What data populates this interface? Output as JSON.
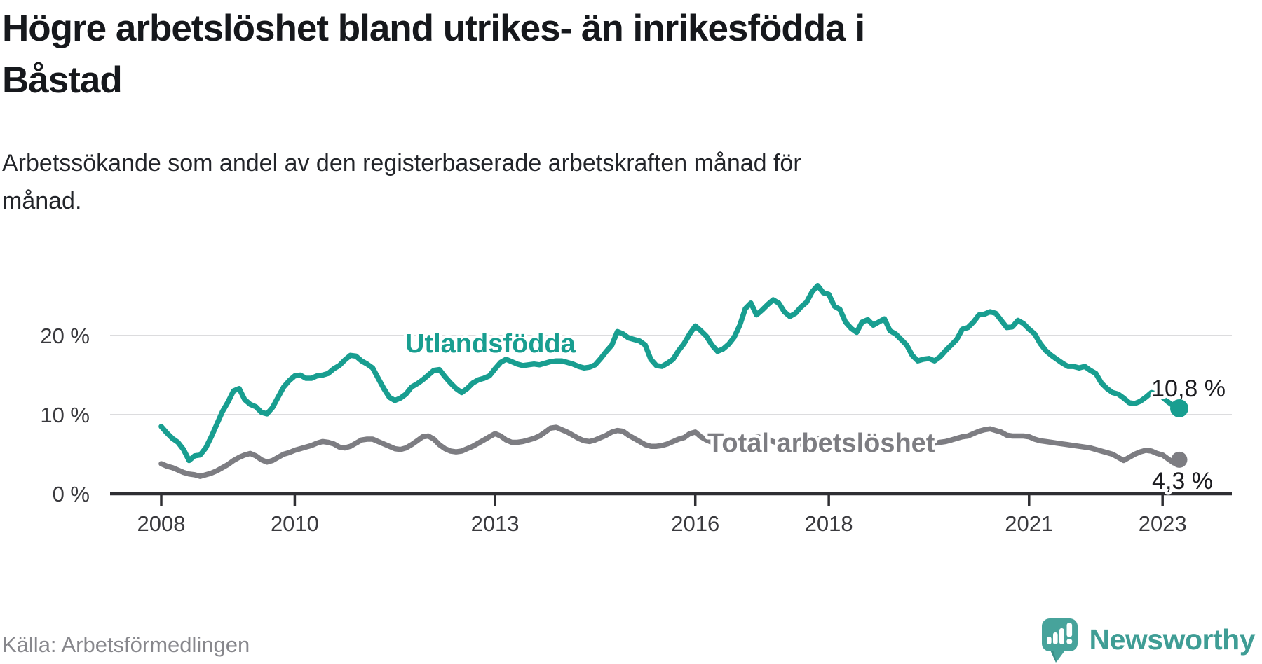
{
  "header": {
    "title": "Högre arbetslöshet bland utrikes- än inrikesfödda i Båstad",
    "title_lines": [
      "Högre arbetslöshet bland utrikes- än inrikesfödda i",
      "Båstad"
    ],
    "subtitle": "Arbetssökande som andel av den registerbaserade arbetskraften månad för månad.",
    "subtitle_lines": [
      "Arbetssökande som andel av den registerbaserade arbetskraften månad för",
      "månad."
    ]
  },
  "footer": {
    "source": "Källa: Arbetsförmedlingen",
    "logo": {
      "brand": "Newsworthy",
      "icon": "speech-bubble-bar-chart-icon",
      "color": "#3f9d95"
    }
  },
  "chart_data": {
    "type": "line",
    "title": "Högre arbetslöshet bland utrikes- än inrikesfödda i Båstad",
    "frequency": "monthly",
    "x_start": {
      "year": 2008,
      "month": 1
    },
    "x_end": {
      "year": 2023,
      "month": 4
    },
    "ylim": [
      0,
      27
    ],
    "grid": "horizontal",
    "legend_position": "inline-labels",
    "colors": {
      "gridline": "#dcdcde",
      "axis": "#2f2f33",
      "axis_text": "#3a3a3e",
      "annotation_text": "#1c1c20"
    },
    "yticks": [
      {
        "value": 0,
        "label": "0 %"
      },
      {
        "value": 10,
        "label": "10 %"
      },
      {
        "value": 20,
        "label": "20 %"
      }
    ],
    "xticks": [
      {
        "year": 2008,
        "label": "2008"
      },
      {
        "year": 2010,
        "label": "2010"
      },
      {
        "year": 2013,
        "label": "2013"
      },
      {
        "year": 2016,
        "label": "2016"
      },
      {
        "year": 2018,
        "label": "2018"
      },
      {
        "year": 2021,
        "label": "2021"
      },
      {
        "year": 2023,
        "label": "2023"
      }
    ],
    "series": [
      {
        "name": "Utlandsfödda",
        "color": "#189e90",
        "end_value": 10.8,
        "end_label": "10,8 %",
        "values": [
          8.5,
          7.7,
          7.0,
          6.5,
          5.6,
          4.2,
          4.8,
          4.9,
          5.8,
          7.2,
          8.8,
          10.4,
          11.6,
          13.0,
          13.3,
          11.9,
          11.3,
          11.0,
          10.3,
          10.1,
          10.9,
          12.2,
          13.5,
          14.3,
          14.9,
          15.0,
          14.6,
          14.6,
          14.9,
          15.0,
          15.2,
          15.8,
          16.2,
          16.9,
          17.5,
          17.4,
          16.8,
          16.4,
          15.9,
          14.6,
          13.3,
          12.2,
          11.8,
          12.1,
          12.6,
          13.5,
          13.9,
          14.4,
          15.0,
          15.6,
          15.7,
          14.8,
          14.0,
          13.3,
          12.8,
          13.3,
          14.0,
          14.4,
          14.6,
          14.9,
          15.8,
          16.6,
          17.0,
          16.7,
          16.4,
          16.2,
          16.3,
          16.4,
          16.3,
          16.5,
          16.7,
          16.8,
          16.8,
          16.6,
          16.4,
          16.1,
          15.9,
          16.0,
          16.3,
          17.1,
          18.0,
          18.8,
          20.5,
          20.2,
          19.7,
          19.5,
          19.3,
          18.8,
          17.0,
          16.2,
          16.1,
          16.5,
          17.0,
          18.1,
          19.0,
          20.2,
          21.2,
          20.6,
          19.9,
          18.8,
          18.0,
          18.3,
          18.9,
          19.8,
          21.3,
          23.4,
          24.1,
          22.6,
          23.2,
          23.9,
          24.5,
          24.1,
          23.0,
          22.4,
          22.8,
          23.6,
          24.2,
          25.5,
          26.3,
          25.4,
          25.2,
          23.7,
          23.3,
          21.7,
          20.9,
          20.4,
          21.7,
          22.0,
          21.3,
          21.7,
          22.1,
          20.6,
          20.2,
          19.5,
          18.8,
          17.5,
          16.8,
          17.0,
          17.1,
          16.8,
          17.3,
          18.1,
          18.8,
          19.5,
          20.8,
          21.0,
          21.7,
          22.6,
          22.7,
          23.0,
          22.8,
          21.9,
          21.0,
          21.1,
          21.9,
          21.5,
          20.8,
          20.2,
          19.0,
          18.1,
          17.5,
          17.0,
          16.5,
          16.1,
          16.1,
          15.9,
          16.1,
          15.6,
          15.2,
          14.0,
          13.3,
          12.8,
          12.6,
          12.1,
          11.5,
          11.4,
          11.7,
          12.2,
          12.8,
          12.6,
          12.2,
          11.6,
          11.1,
          10.8
        ]
      },
      {
        "name": "Total arbetslöshet",
        "color": "#7d7d82",
        "end_value": 4.3,
        "end_label": "4,3 %",
        "values": [
          3.8,
          3.5,
          3.3,
          3.0,
          2.7,
          2.5,
          2.4,
          2.2,
          2.4,
          2.6,
          2.9,
          3.3,
          3.7,
          4.2,
          4.6,
          4.9,
          5.1,
          4.8,
          4.3,
          4.0,
          4.2,
          4.6,
          5.0,
          5.2,
          5.5,
          5.7,
          5.9,
          6.1,
          6.4,
          6.6,
          6.5,
          6.3,
          5.9,
          5.8,
          6.0,
          6.4,
          6.8,
          6.9,
          6.9,
          6.6,
          6.3,
          6.0,
          5.7,
          5.6,
          5.8,
          6.2,
          6.7,
          7.2,
          7.3,
          6.9,
          6.2,
          5.7,
          5.4,
          5.3,
          5.4,
          5.7,
          6.0,
          6.4,
          6.8,
          7.2,
          7.6,
          7.3,
          6.8,
          6.5,
          6.5,
          6.6,
          6.8,
          7.0,
          7.3,
          7.8,
          8.3,
          8.4,
          8.1,
          7.8,
          7.4,
          7.0,
          6.7,
          6.6,
          6.8,
          7.1,
          7.4,
          7.8,
          8.0,
          7.9,
          7.4,
          7.0,
          6.6,
          6.2,
          6.0,
          6.0,
          6.1,
          6.3,
          6.6,
          6.9,
          7.1,
          7.6,
          7.8,
          7.2,
          6.8,
          6.5,
          6.3,
          6.2,
          6.3,
          6.4,
          6.6,
          6.8,
          7.0,
          7.2,
          7.1,
          6.9,
          6.6,
          6.4,
          6.2,
          6.1,
          6.2,
          6.3,
          6.5,
          6.7,
          6.9,
          7.0,
          6.9,
          6.7,
          6.5,
          6.3,
          6.1,
          6.0,
          6.1,
          6.2,
          6.4,
          6.5,
          6.7,
          6.8,
          6.8,
          6.6,
          6.4,
          6.3,
          6.2,
          6.2,
          6.3,
          6.4,
          6.5,
          6.6,
          6.8,
          7.0,
          7.2,
          7.3,
          7.6,
          7.9,
          8.1,
          8.2,
          8.0,
          7.8,
          7.4,
          7.3,
          7.3,
          7.3,
          7.2,
          6.9,
          6.7,
          6.6,
          6.5,
          6.4,
          6.3,
          6.2,
          6.1,
          6.0,
          5.9,
          5.8,
          5.6,
          5.4,
          5.2,
          5.0,
          4.6,
          4.2,
          4.6,
          5.0,
          5.3,
          5.5,
          5.4,
          5.1,
          4.9,
          4.4,
          3.9,
          4.3
        ]
      }
    ]
  }
}
